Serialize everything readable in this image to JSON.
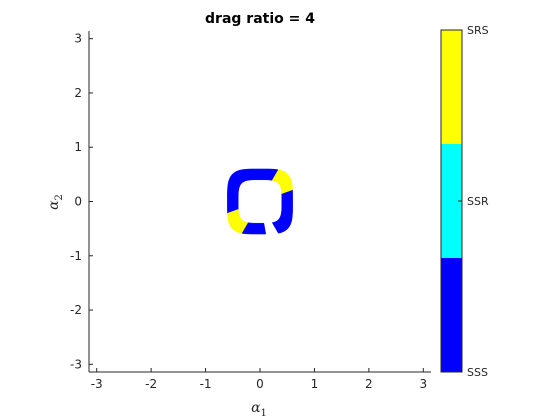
{
  "chart_data": {
    "type": "heatmap",
    "title": "drag ratio = 4",
    "xlabel": {
      "symbol": "α",
      "subscript": "1"
    },
    "ylabel": {
      "symbol": "α",
      "subscript": "2"
    },
    "xlim": [
      -3.1416,
      3.1416
    ],
    "ylim": [
      -3.1416,
      3.1416
    ],
    "xticks": [
      -3,
      -2,
      -1,
      0,
      1,
      2,
      3
    ],
    "yticks": [
      -3,
      -2,
      -1,
      0,
      1,
      2,
      3
    ],
    "grid": false,
    "colorbar": {
      "position": "right",
      "categories": [
        {
          "label": "SSS",
          "color": "#0000ff"
        },
        {
          "label": "SSR",
          "color": "#00ffff"
        },
        {
          "label": "SRS",
          "color": "#ffff00"
        }
      ]
    },
    "regions": [
      {
        "category": "SSS",
        "shape": "annulus-square",
        "center": [
          0,
          0
        ],
        "inner_radius": 0.4,
        "outer_radius": 0.6,
        "angle_ranges_deg": [
          [
            -60,
            20
          ],
          [
            60,
            200
          ],
          [
            240,
            280
          ]
        ]
      },
      {
        "category": "SRS",
        "shape": "annulus-square",
        "center": [
          0,
          0
        ],
        "inner_radius": 0.4,
        "outer_radius": 0.6,
        "angle_ranges_deg": [
          [
            20,
            60
          ],
          [
            200,
            240
          ]
        ]
      }
    ]
  }
}
